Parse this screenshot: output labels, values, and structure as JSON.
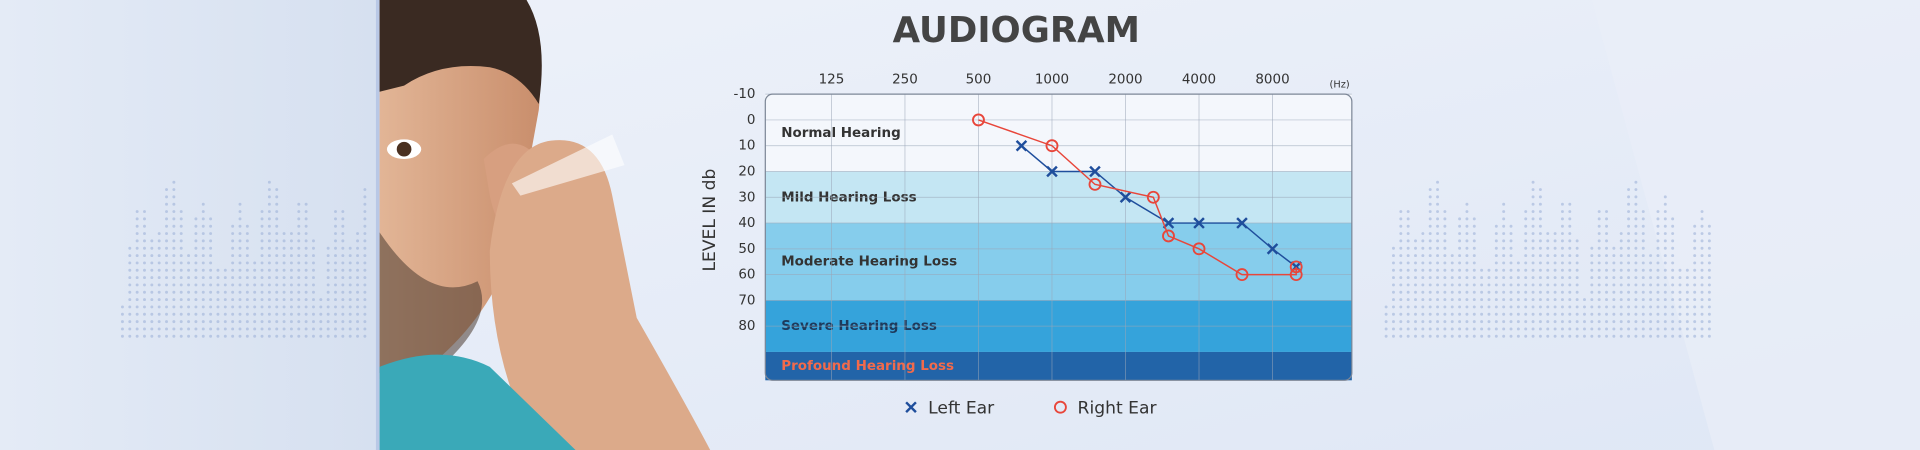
{
  "chart_data": {
    "type": "line",
    "title": "AUDIOGRAM",
    "y_label": "LEVEL IN db",
    "x_unit": "(Hz)",
    "x_scale": "log",
    "xlim": [
      67,
      16900
    ],
    "xticks": [
      125,
      250,
      500,
      1000,
      2000,
      4000,
      8000
    ],
    "ylim": [
      -10,
      101
    ],
    "y_inverted": true,
    "yticks": [
      -10,
      0,
      10,
      20,
      30,
      40,
      50,
      60,
      70,
      80
    ],
    "grid": true,
    "legend": "bottom",
    "bands": [
      {
        "label": "Normal Hearing",
        "from": -10,
        "to": 20,
        "color": "#f4f7fc",
        "text_color": "#333333"
      },
      {
        "label": "Mild Hearing Loss",
        "from": 20,
        "to": 40,
        "color": "#c4e6f3",
        "text_color": "#333333"
      },
      {
        "label": "Moderate Hearing Loss",
        "from": 40,
        "to": 70,
        "color": "#86cdec",
        "text_color": "#333333"
      },
      {
        "label": "Severe Hearing Loss",
        "from": 70,
        "to": 90,
        "color": "#35a3db",
        "text_color": "#1d3a5c"
      },
      {
        "label": "Profound Hearing Loss",
        "from": 90,
        "to": 101,
        "color": "#2264a8",
        "text_color": "#f26a4b"
      }
    ],
    "series": [
      {
        "name": "Left Ear",
        "color": "#1f4e9c",
        "marker": "x",
        "x": [
          750,
          1000,
          1500,
          2000,
          3000,
          4000,
          6000,
          8000,
          10000
        ],
        "values": [
          10,
          20,
          20,
          30,
          40,
          40,
          40,
          50,
          57
        ]
      },
      {
        "name": "Right Ear",
        "color": "#e8463a",
        "marker": "o",
        "x": [
          500,
          1000,
          1500,
          2600,
          3000,
          4000,
          6000,
          10000,
          10000
        ],
        "values": [
          0,
          10,
          25,
          30,
          45,
          50,
          60,
          60,
          57
        ]
      }
    ]
  }
}
